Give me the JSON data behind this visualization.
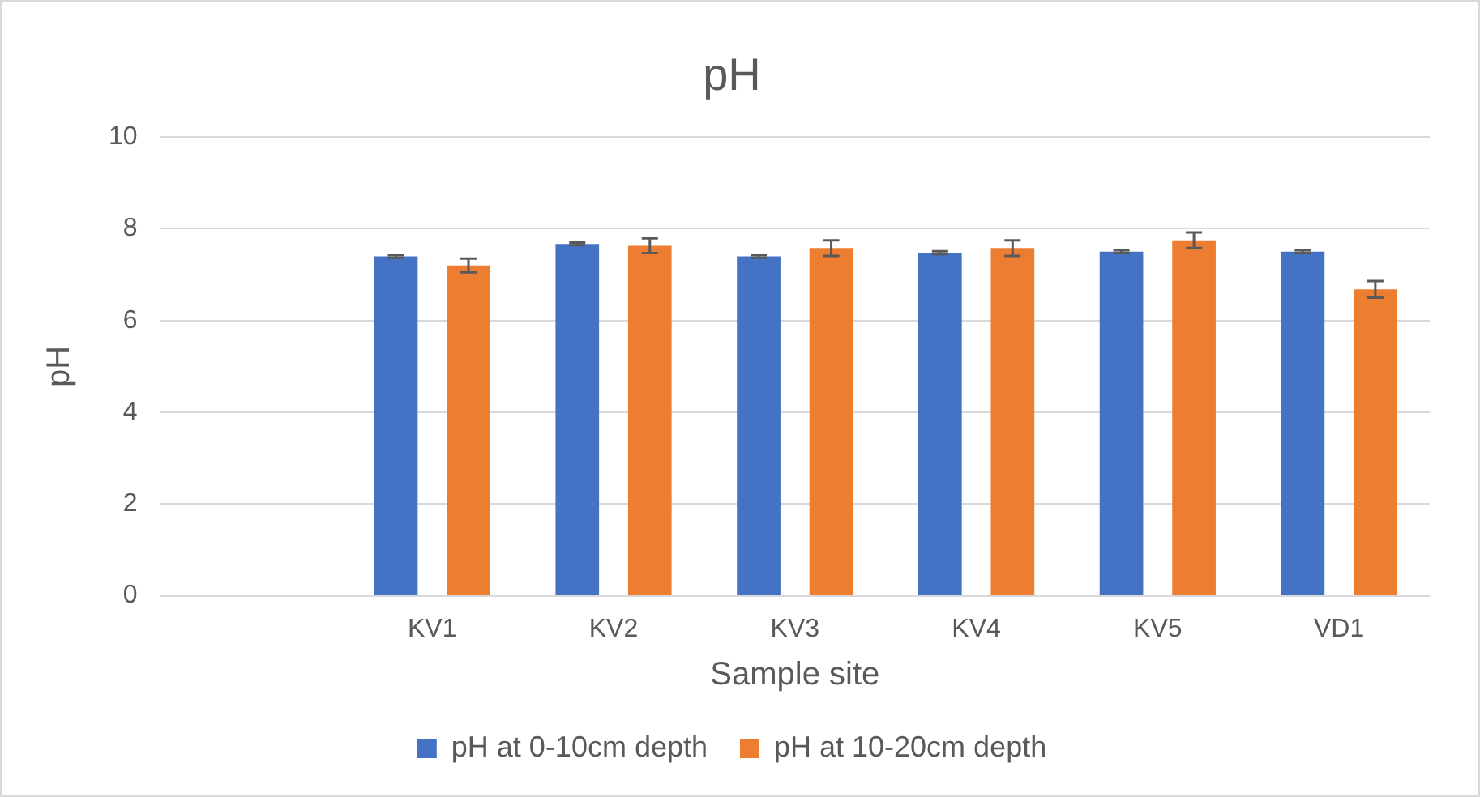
{
  "chart_data": {
    "type": "bar",
    "title": "pH",
    "xlabel": "Sample site",
    "ylabel": "pH",
    "categories": [
      null,
      "KV1",
      "KV2",
      "KV3",
      "KV4",
      "KV5",
      "VD1"
    ],
    "series": [
      {
        "name": "pH at 0-10cm depth",
        "color": "#4472c4",
        "values": [
          null,
          7.4,
          7.67,
          7.4,
          7.48,
          7.5,
          7.5
        ],
        "errors": [
          null,
          0.03,
          0.03,
          0.03,
          0.03,
          0.03,
          0.03
        ]
      },
      {
        "name": "pH at 10-20cm depth",
        "color": "#ed7d31",
        "values": [
          null,
          7.2,
          7.63,
          7.58,
          7.58,
          7.75,
          6.68
        ],
        "errors": [
          null,
          0.15,
          0.16,
          0.17,
          0.17,
          0.17,
          0.18
        ]
      }
    ],
    "ylim": [
      0,
      10
    ],
    "yticks": [
      0,
      2,
      4,
      6,
      8,
      10
    ],
    "grid": "y",
    "legend": "bottom"
  }
}
